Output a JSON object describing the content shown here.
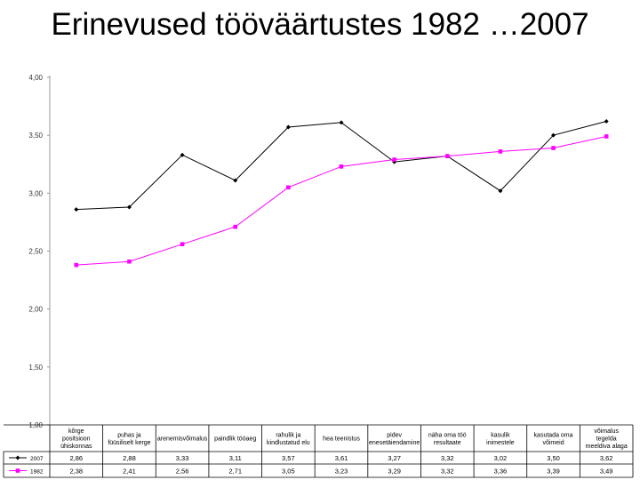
{
  "title": "Erinevused tööväärtustes 1982 …2007",
  "chart_data": {
    "type": "line",
    "title": "Erinevused tööväärtustes 1982 …2007",
    "ylim": [
      1.0,
      4.0
    ],
    "yticks": [
      "1,00",
      "1,50",
      "2,00",
      "2,50",
      "3,00",
      "3,50",
      "4,00"
    ],
    "ytick_values": [
      1.0,
      1.5,
      2.0,
      2.5,
      3.0,
      3.5,
      4.0
    ],
    "grid": false,
    "categories": [
      [
        "kõrge",
        "positsioon",
        "ühiskonnas"
      ],
      [
        "puhas ja",
        "füüsiliselt kerge"
      ],
      [
        "arenemisvõimalus"
      ],
      [
        "paindlik tööaeg"
      ],
      [
        "rahulik ja",
        "kindlustatud elu"
      ],
      [
        "hea teenistus"
      ],
      [
        "pidev",
        "enesetäiendamine"
      ],
      [
        "näha oma töö",
        "resultaate"
      ],
      [
        "kasulik",
        "inimestele"
      ],
      [
        "kasutada oma",
        "võimeid"
      ],
      [
        "võimalus",
        "tegelda",
        "meeldiva alaga"
      ]
    ],
    "series": [
      {
        "name": "2007",
        "color": "#000000",
        "marker": "diamond",
        "values": [
          2.86,
          2.88,
          3.33,
          3.11,
          3.57,
          3.61,
          3.27,
          3.32,
          3.02,
          3.5,
          3.62
        ],
        "labels": [
          "2,86",
          "2,88",
          "3,33",
          "3,11",
          "3,57",
          "3,61",
          "3,27",
          "3,32",
          "3,02",
          "3,50",
          "3,62"
        ]
      },
      {
        "name": "1982",
        "color": "#ff00ff",
        "marker": "square",
        "values": [
          2.38,
          2.41,
          2.56,
          2.71,
          3.05,
          3.23,
          3.29,
          3.32,
          3.36,
          3.39,
          3.49
        ],
        "labels": [
          "2,38",
          "2,41",
          "2,56",
          "2,71",
          "3,05",
          "3,23",
          "3,29",
          "3,32",
          "3,36",
          "3,39",
          "3,49"
        ]
      }
    ]
  }
}
